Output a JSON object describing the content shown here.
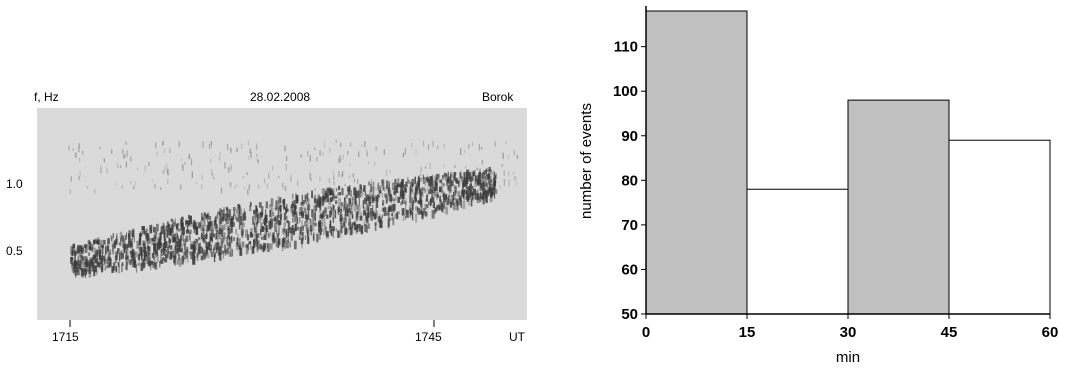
{
  "chart_data": [
    {
      "type": "heatmap",
      "title": "28.02.2008",
      "station": "Borok",
      "ylabel": "f, Hz",
      "xlabel": "UT",
      "x_ticks": [
        "1715",
        "1745"
      ],
      "y_ticks": [
        "1.0",
        "0.5"
      ],
      "background_color": "#dadada",
      "signal_color": "#3a3a3a"
    },
    {
      "type": "bar",
      "xlabel": "min",
      "ylabel": "number of events",
      "x_ticks": [
        "0",
        "15",
        "30",
        "45",
        "60"
      ],
      "y_ticks": [
        "50",
        "60",
        "70",
        "80",
        "90",
        "100",
        "110"
      ],
      "ylim": [
        50,
        118
      ],
      "bins": [
        {
          "start": 0,
          "end": 15,
          "value": 118,
          "fill": "#c0c0c0"
        },
        {
          "start": 15,
          "end": 30,
          "value": 78,
          "fill": "#ffffff"
        },
        {
          "start": 30,
          "end": 45,
          "value": 98,
          "fill": "#c0c0c0"
        },
        {
          "start": 45,
          "end": 60,
          "value": 89,
          "fill": "#ffffff"
        }
      ]
    }
  ]
}
